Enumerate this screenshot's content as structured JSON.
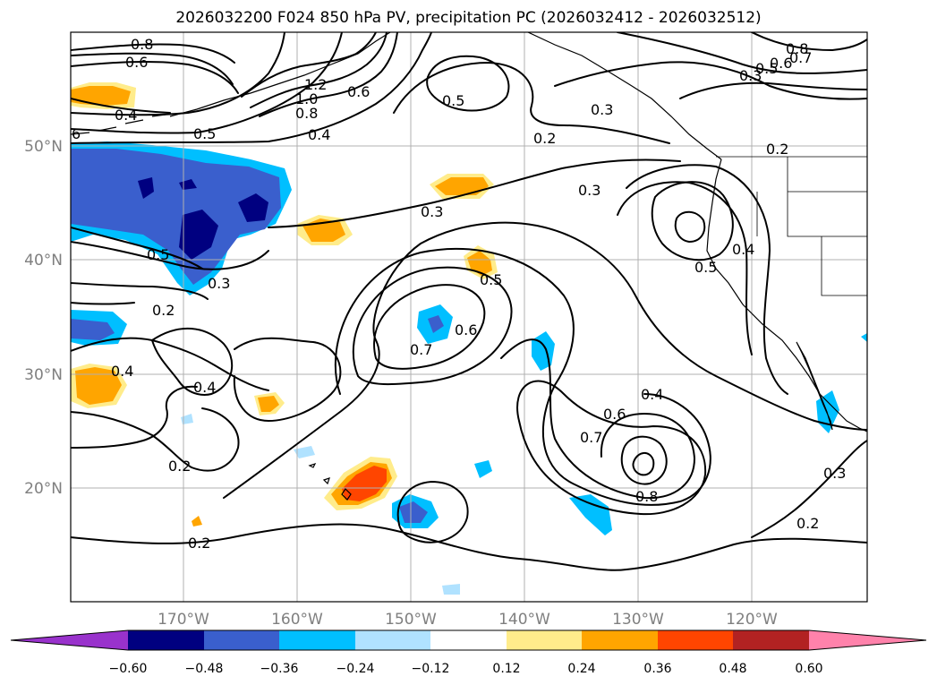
{
  "title": "2026032200 F024 850 hPa PV, precipitation PC (2026032412 - 2026032512)",
  "lat_labels": [
    "50°N",
    "40°N",
    "30°N",
    "20°N"
  ],
  "lon_labels": [
    "170°W",
    "160°W",
    "150°W",
    "140°W",
    "130°W",
    "120°W"
  ],
  "colorbar": {
    "ticks": [
      "−0.60",
      "−0.48",
      "−0.36",
      "−0.24",
      "−0.12",
      "0.12",
      "0.24",
      "0.36",
      "0.48",
      "0.60"
    ],
    "colors": [
      "#9932cc",
      "#000080",
      "#3a5fcd",
      "#00bfff",
      "#b0e2ff",
      "#ffffff",
      "#ffec8b",
      "#ffa500",
      "#ff4500",
      "#b22222",
      "#ff82ab"
    ]
  },
  "contour_labels": {
    "c1": "0.8",
    "c2": "0.6",
    "c3": "0.4",
    "c4": "0.5",
    "c5": "1.2",
    "c6": "1.0",
    "c7": "0.8",
    "c8": "0.6",
    "c9": "0.4",
    "c10": "0.5",
    "c11": "0.3",
    "c12": "0.2",
    "c13": "0.8",
    "c14": "0.7",
    "c15": "0.6",
    "c16": "0.5",
    "c17": "0.3",
    "c18": "0.3",
    "c19": "0.5",
    "c20": "0.3",
    "c21": "0.5",
    "c22": "0.3",
    "c23": "0.7",
    "c24": "0.6",
    "c25": "0.4",
    "c26": "0.4",
    "c27": "0.2",
    "c28": "0.4",
    "c29": "0.6",
    "c30": "0.7",
    "c31": "0.8",
    "c32": "0.2",
    "c33": "0.2",
    "c34": "0.3",
    "c35": "0.5",
    "c36": "0.4",
    "c37": "6",
    "c38": "0.2",
    "c39": "0.2"
  }
}
